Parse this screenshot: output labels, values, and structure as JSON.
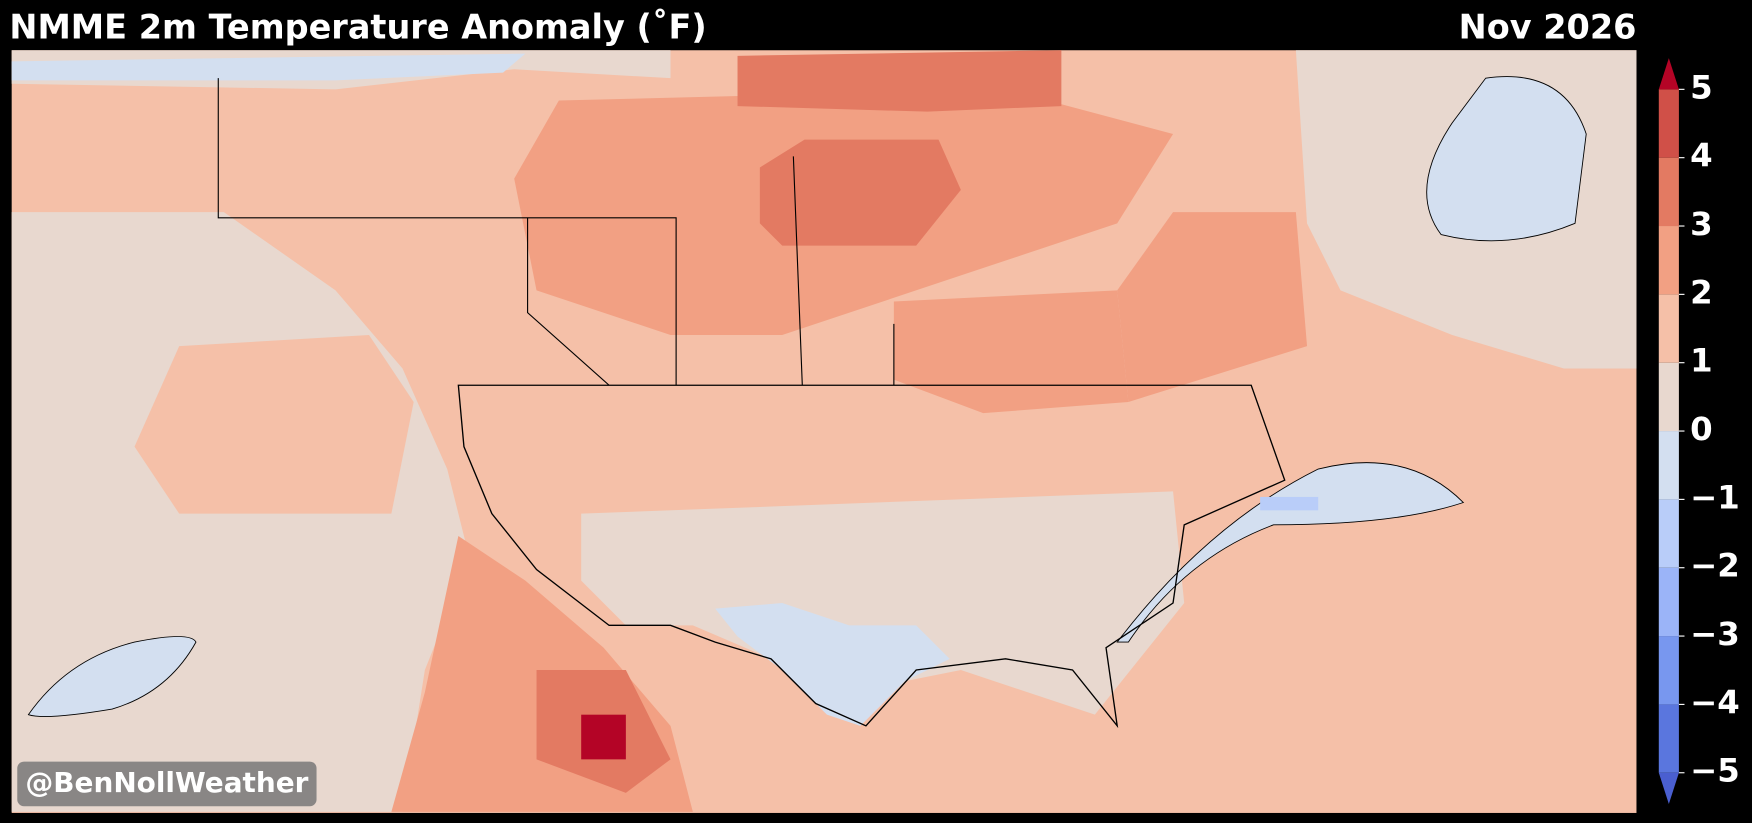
{
  "header": {
    "title": "NMME 2m Temperature Anomaly (˚F)",
    "date": "Nov 2026"
  },
  "colorbar": {
    "ticks": [
      {
        "value": -5,
        "label": "−5"
      },
      {
        "value": -4,
        "label": "−4"
      },
      {
        "value": -3,
        "label": "−3"
      },
      {
        "value": -2,
        "label": "−2"
      },
      {
        "value": -1,
        "label": "−1"
      },
      0,
      1,
      2,
      3,
      4,
      5
    ],
    "colors": [
      "#5a76de",
      "#7897ef",
      "#9bb4f8",
      "#b9cdf9",
      "#d3dff0",
      "#e8d8cf",
      "#f5c0a8",
      "#f2a083",
      "#e37a62",
      "#d05048"
    ],
    "under_color": "#4a5fd0",
    "over_color": "#b40426"
  },
  "watermark": "@BenNollWeather"
}
